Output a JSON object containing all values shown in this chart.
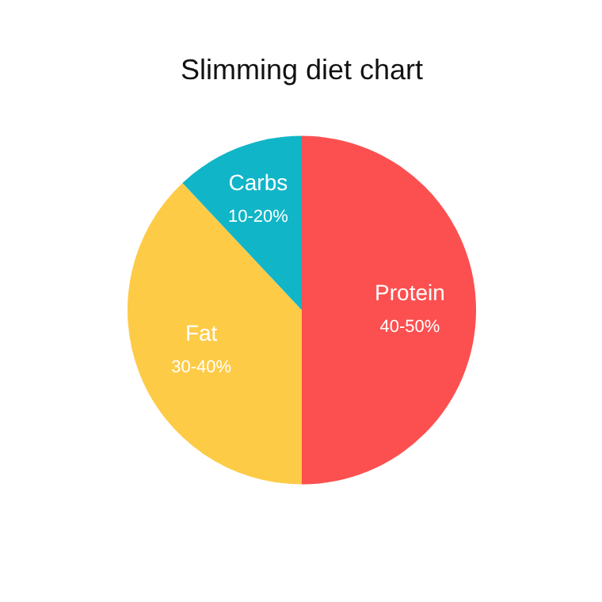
{
  "chart_data": {
    "type": "pie",
    "title": "Slimming diet chart",
    "categories": [
      "Protein",
      "Fat",
      "Carbs"
    ],
    "values": [
      50,
      38,
      12
    ],
    "annotations": [
      "40-50%",
      "30-40%",
      "10-20%"
    ],
    "colors": [
      "#fc5050",
      "#fecb47",
      "#10b5c8"
    ]
  }
}
